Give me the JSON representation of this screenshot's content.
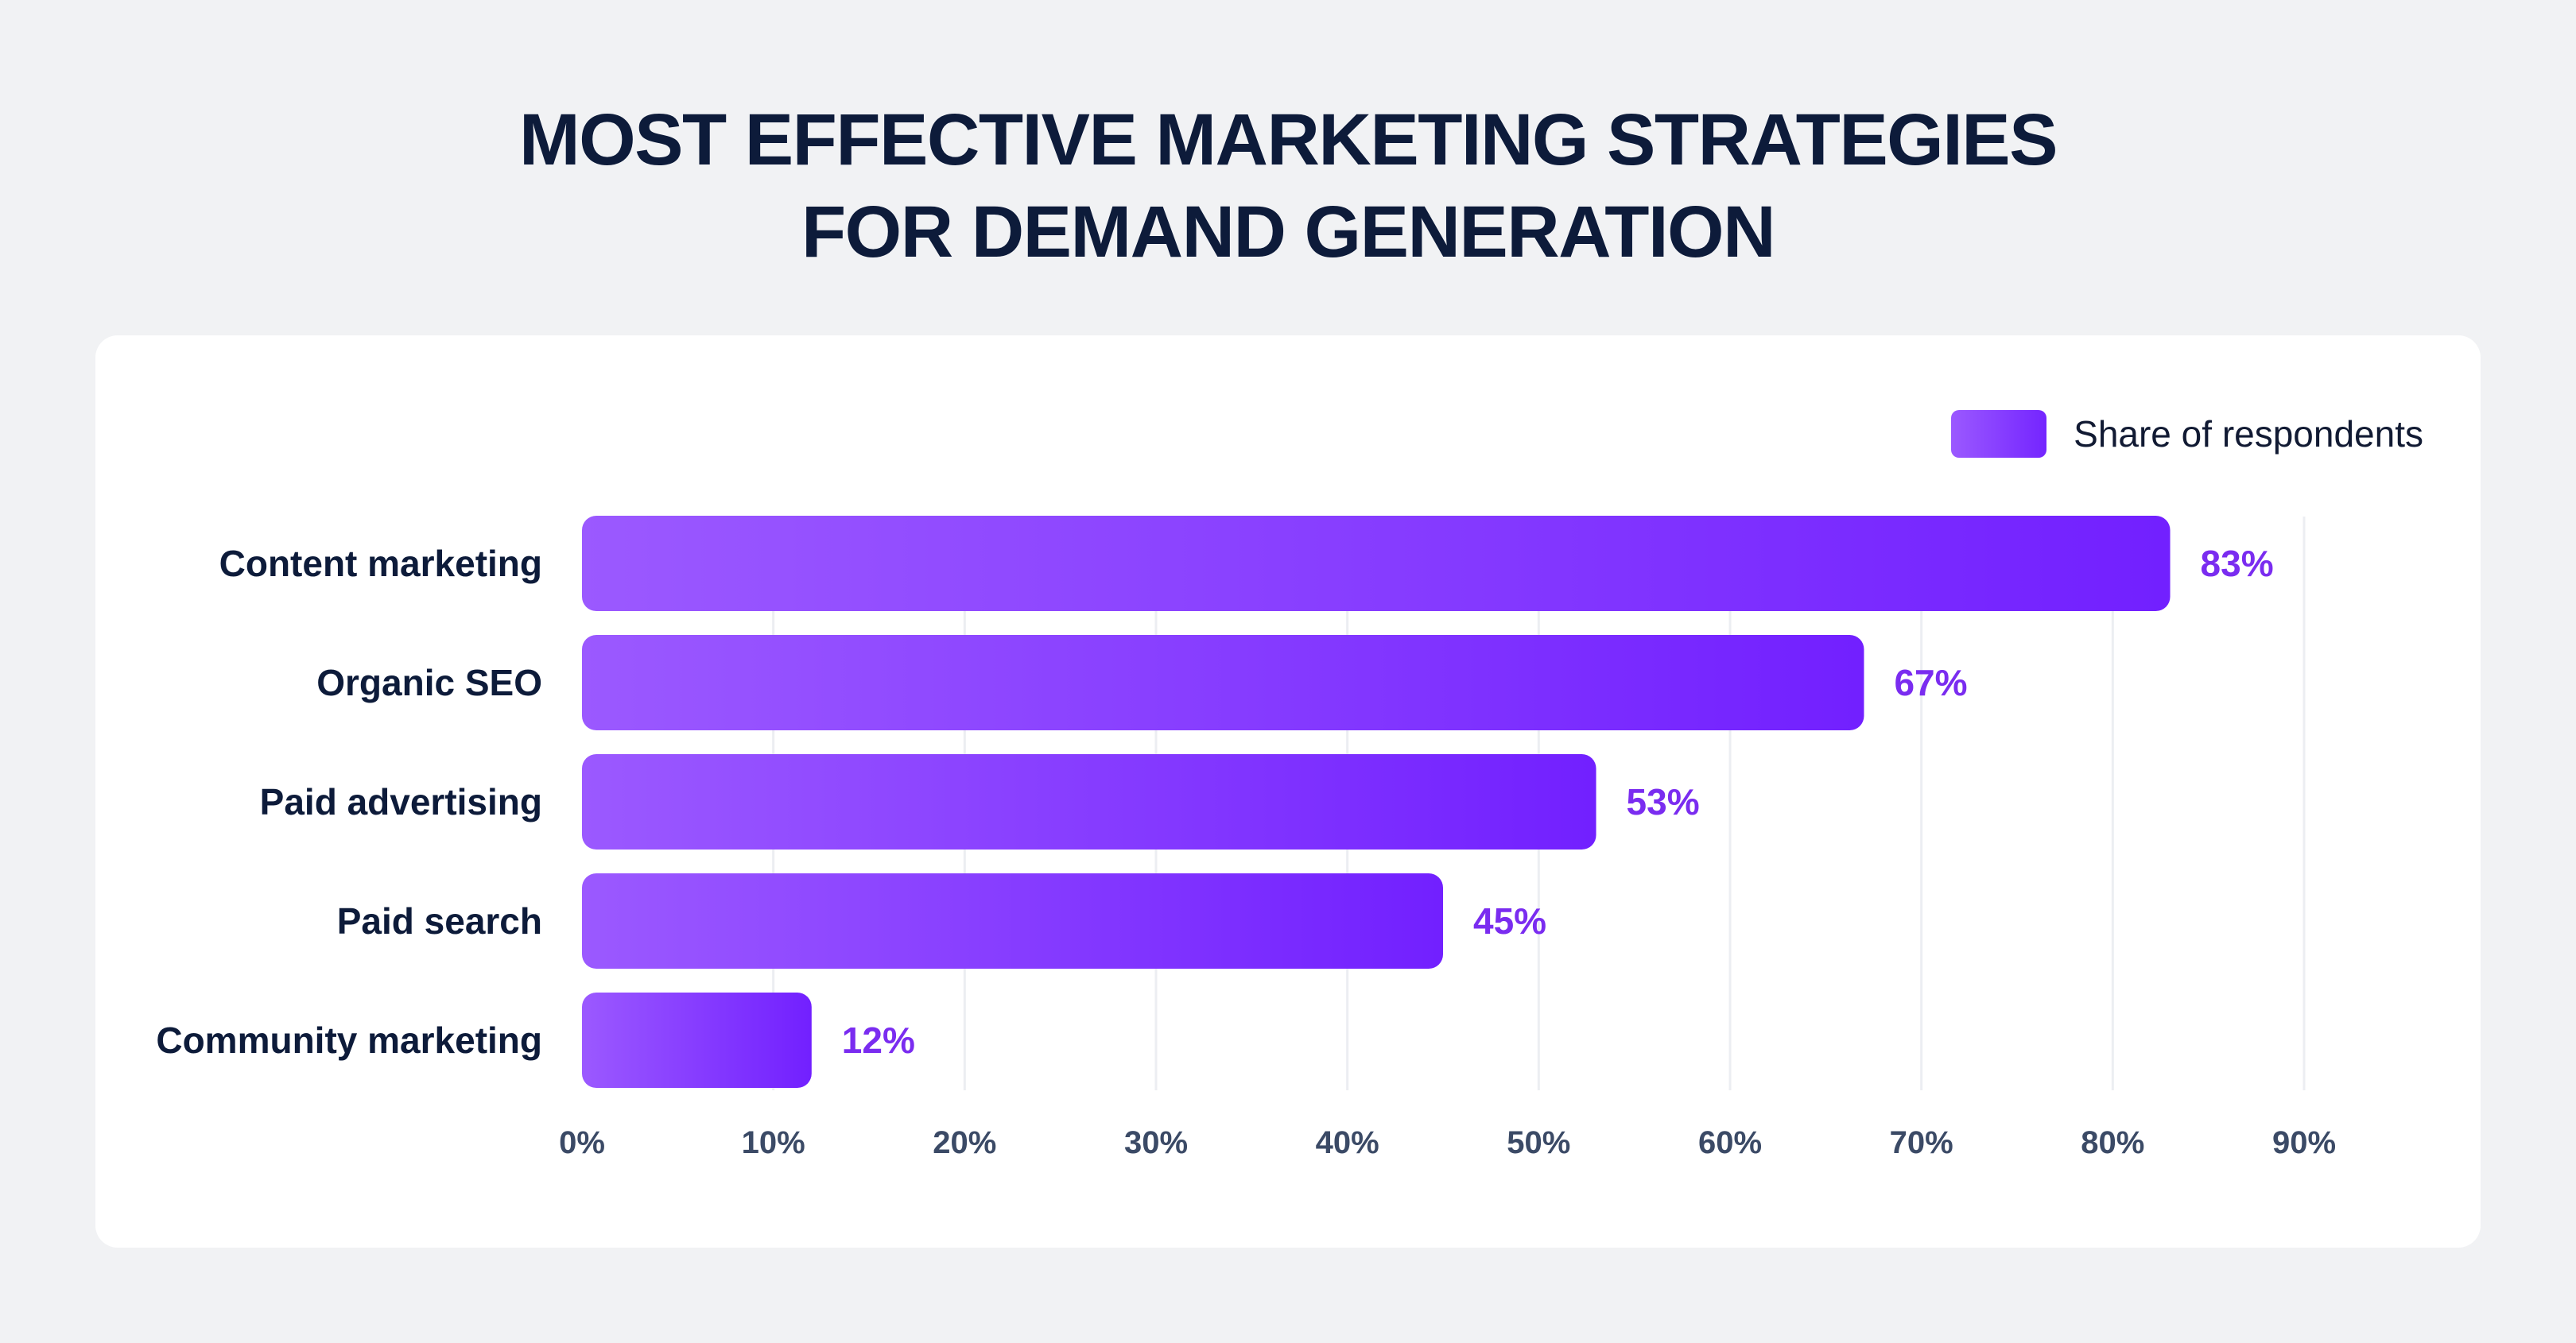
{
  "title": {
    "line1": "MOST EFFECTIVE MARKETING STRATEGIES",
    "line2": "FOR DEMAND GENERATION"
  },
  "colors": {
    "bar_start": "#9b59ff",
    "bar_end": "#7220ff",
    "value_label": "#7a2cf0",
    "category_label": "#0d1b3a",
    "tick_label": "#3b4a66",
    "grid": "#eceef2",
    "background": "#f1f2f4",
    "card": "#ffffff"
  },
  "chart_data": {
    "type": "bar",
    "orientation": "horizontal",
    "title": "MOST EFFECTIVE MARKETING STRATEGIES FOR DEMAND GENERATION",
    "categories": [
      "Content marketing",
      "Organic SEO",
      "Paid advertising",
      "Paid search",
      "Community marketing"
    ],
    "series": [
      {
        "name": "Share of respondents",
        "values": [
          83,
          67,
          53,
          45,
          12
        ],
        "labels": [
          "83%",
          "67%",
          "53%",
          "45%",
          "12%"
        ]
      }
    ],
    "xlim": [
      0,
      90
    ],
    "xticks": [
      0,
      10,
      20,
      30,
      40,
      50,
      60,
      70,
      80,
      90
    ],
    "xtick_labels": [
      "0%",
      "10%",
      "20%",
      "30%",
      "40%",
      "50%",
      "60%",
      "70%",
      "80%",
      "90%"
    ],
    "xlabel": "",
    "ylabel": "",
    "grid": true,
    "legend_position": "top-right"
  }
}
